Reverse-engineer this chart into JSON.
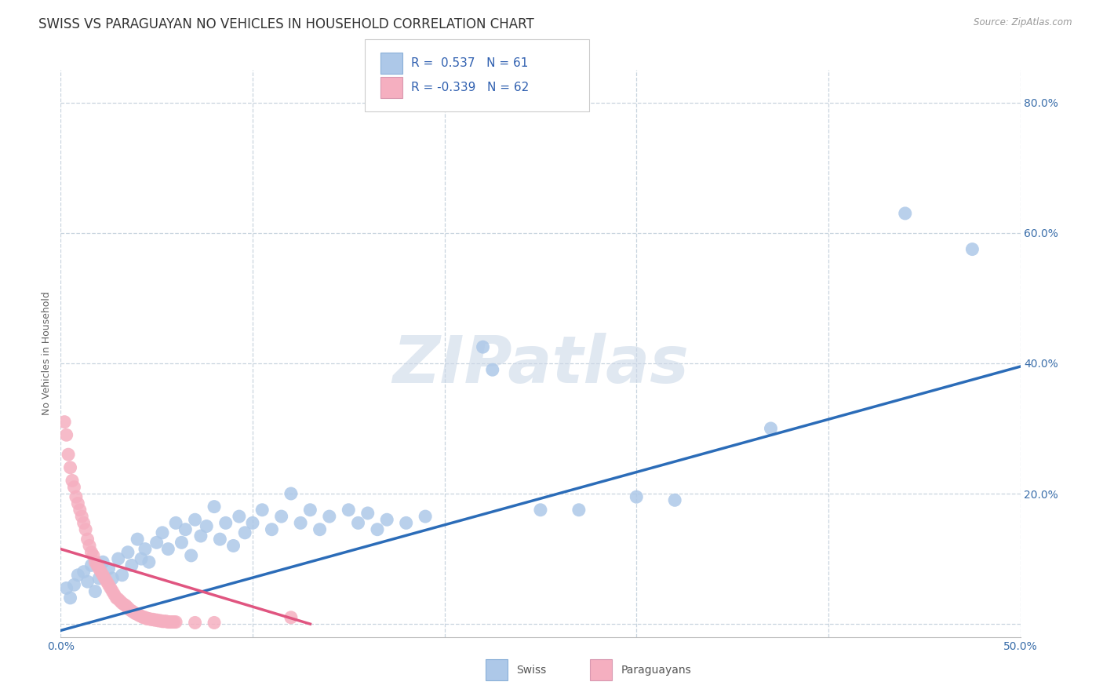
{
  "title": "SWISS VS PARAGUAYAN NO VEHICLES IN HOUSEHOLD CORRELATION CHART",
  "source": "Source: ZipAtlas.com",
  "ylabel": "No Vehicles in Household",
  "xlim": [
    0.0,
    0.5
  ],
  "ylim": [
    -0.02,
    0.85
  ],
  "xticks": [
    0.0,
    0.1,
    0.2,
    0.3,
    0.4,
    0.5
  ],
  "xticklabels": [
    "0.0%",
    "",
    "",
    "",
    "",
    "50.0%"
  ],
  "ytick_positions": [
    0.0,
    0.2,
    0.4,
    0.6,
    0.8
  ],
  "ytick_labels": [
    "",
    "20.0%",
    "40.0%",
    "60.0%",
    "80.0%"
  ],
  "swiss_color": "#adc8e8",
  "paraguayan_color": "#f5afc0",
  "swiss_line_color": "#2b6cb8",
  "paraguayan_line_color": "#e05580",
  "R_swiss": 0.537,
  "N_swiss": 61,
  "R_paraguayan": -0.339,
  "N_paraguayan": 62,
  "swiss_line_x0": 0.0,
  "swiss_line_y0": -0.01,
  "swiss_line_x1": 0.5,
  "swiss_line_y1": 0.395,
  "paraguayan_line_x0": 0.0,
  "paraguayan_line_y0": 0.115,
  "paraguayan_line_x1": 0.13,
  "paraguayan_line_y1": 0.0,
  "swiss_points": [
    [
      0.003,
      0.055
    ],
    [
      0.005,
      0.04
    ],
    [
      0.007,
      0.06
    ],
    [
      0.009,
      0.075
    ],
    [
      0.012,
      0.08
    ],
    [
      0.014,
      0.065
    ],
    [
      0.016,
      0.09
    ],
    [
      0.018,
      0.05
    ],
    [
      0.02,
      0.07
    ],
    [
      0.022,
      0.095
    ],
    [
      0.025,
      0.085
    ],
    [
      0.027,
      0.07
    ],
    [
      0.03,
      0.1
    ],
    [
      0.032,
      0.075
    ],
    [
      0.035,
      0.11
    ],
    [
      0.037,
      0.09
    ],
    [
      0.04,
      0.13
    ],
    [
      0.042,
      0.1
    ],
    [
      0.044,
      0.115
    ],
    [
      0.046,
      0.095
    ],
    [
      0.05,
      0.125
    ],
    [
      0.053,
      0.14
    ],
    [
      0.056,
      0.115
    ],
    [
      0.06,
      0.155
    ],
    [
      0.063,
      0.125
    ],
    [
      0.065,
      0.145
    ],
    [
      0.068,
      0.105
    ],
    [
      0.07,
      0.16
    ],
    [
      0.073,
      0.135
    ],
    [
      0.076,
      0.15
    ],
    [
      0.08,
      0.18
    ],
    [
      0.083,
      0.13
    ],
    [
      0.086,
      0.155
    ],
    [
      0.09,
      0.12
    ],
    [
      0.093,
      0.165
    ],
    [
      0.096,
      0.14
    ],
    [
      0.1,
      0.155
    ],
    [
      0.105,
      0.175
    ],
    [
      0.11,
      0.145
    ],
    [
      0.115,
      0.165
    ],
    [
      0.12,
      0.2
    ],
    [
      0.125,
      0.155
    ],
    [
      0.13,
      0.175
    ],
    [
      0.135,
      0.145
    ],
    [
      0.14,
      0.165
    ],
    [
      0.15,
      0.175
    ],
    [
      0.155,
      0.155
    ],
    [
      0.16,
      0.17
    ],
    [
      0.165,
      0.145
    ],
    [
      0.17,
      0.16
    ],
    [
      0.18,
      0.155
    ],
    [
      0.19,
      0.165
    ],
    [
      0.22,
      0.425
    ],
    [
      0.225,
      0.39
    ],
    [
      0.25,
      0.175
    ],
    [
      0.27,
      0.175
    ],
    [
      0.3,
      0.195
    ],
    [
      0.32,
      0.19
    ],
    [
      0.37,
      0.3
    ],
    [
      0.44,
      0.63
    ],
    [
      0.475,
      0.575
    ]
  ],
  "paraguayan_points": [
    [
      0.002,
      0.31
    ],
    [
      0.003,
      0.29
    ],
    [
      0.004,
      0.26
    ],
    [
      0.005,
      0.24
    ],
    [
      0.006,
      0.22
    ],
    [
      0.007,
      0.21
    ],
    [
      0.008,
      0.195
    ],
    [
      0.009,
      0.185
    ],
    [
      0.01,
      0.175
    ],
    [
      0.011,
      0.165
    ],
    [
      0.012,
      0.155
    ],
    [
      0.013,
      0.145
    ],
    [
      0.014,
      0.13
    ],
    [
      0.015,
      0.12
    ],
    [
      0.016,
      0.11
    ],
    [
      0.017,
      0.105
    ],
    [
      0.018,
      0.095
    ],
    [
      0.019,
      0.09
    ],
    [
      0.02,
      0.085
    ],
    [
      0.021,
      0.08
    ],
    [
      0.022,
      0.075
    ],
    [
      0.023,
      0.07
    ],
    [
      0.024,
      0.065
    ],
    [
      0.025,
      0.06
    ],
    [
      0.026,
      0.055
    ],
    [
      0.027,
      0.05
    ],
    [
      0.028,
      0.045
    ],
    [
      0.029,
      0.04
    ],
    [
      0.03,
      0.038
    ],
    [
      0.031,
      0.035
    ],
    [
      0.032,
      0.032
    ],
    [
      0.033,
      0.03
    ],
    [
      0.034,
      0.028
    ],
    [
      0.035,
      0.025
    ],
    [
      0.036,
      0.022
    ],
    [
      0.037,
      0.02
    ],
    [
      0.038,
      0.018
    ],
    [
      0.039,
      0.016
    ],
    [
      0.04,
      0.015
    ],
    [
      0.041,
      0.013
    ],
    [
      0.042,
      0.012
    ],
    [
      0.043,
      0.01
    ],
    [
      0.044,
      0.01
    ],
    [
      0.045,
      0.008
    ],
    [
      0.046,
      0.008
    ],
    [
      0.047,
      0.007
    ],
    [
      0.048,
      0.007
    ],
    [
      0.049,
      0.006
    ],
    [
      0.05,
      0.006
    ],
    [
      0.051,
      0.005
    ],
    [
      0.052,
      0.005
    ],
    [
      0.053,
      0.004
    ],
    [
      0.054,
      0.004
    ],
    [
      0.055,
      0.004
    ],
    [
      0.056,
      0.003
    ],
    [
      0.057,
      0.003
    ],
    [
      0.058,
      0.003
    ],
    [
      0.059,
      0.003
    ],
    [
      0.06,
      0.003
    ],
    [
      0.07,
      0.002
    ],
    [
      0.08,
      0.002
    ],
    [
      0.12,
      0.01
    ]
  ],
  "watermark_text": "ZIPatlas",
  "watermark_color": "#ccd9e8",
  "background_color": "#ffffff",
  "grid_color": "#c8d4df",
  "title_fontsize": 12,
  "axis_label_fontsize": 9,
  "tick_fontsize": 10,
  "legend_fontsize": 11
}
